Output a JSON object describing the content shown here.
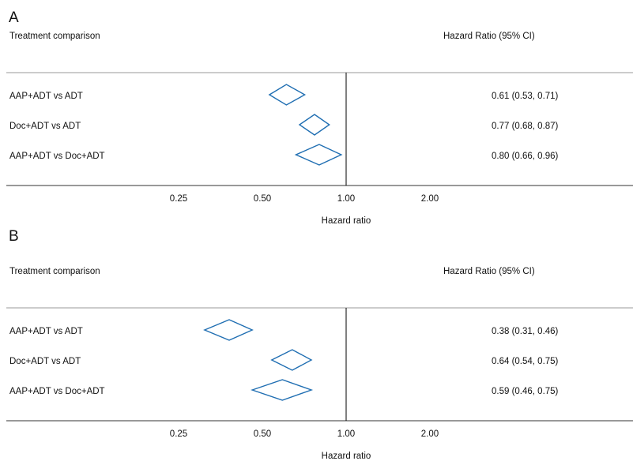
{
  "chart_data": [
    {
      "type": "forest",
      "panel_label": "A",
      "column_headers": {
        "left": "Treatment comparison",
        "right": "Hazard Ratio (95% CI)"
      },
      "rows": [
        {
          "label": "AAP+ADT vs ADT",
          "hr": 0.61,
          "lower": 0.53,
          "upper": 0.71,
          "ci_text": "0.61 (0.53, 0.71)"
        },
        {
          "label": "Doc+ADT vs ADT",
          "hr": 0.77,
          "lower": 0.68,
          "upper": 0.87,
          "ci_text": "0.77 (0.68, 0.87)"
        },
        {
          "label": "AAP+ADT vs Doc+ADT",
          "hr": 0.8,
          "lower": 0.66,
          "upper": 0.96,
          "ci_text": "0.80 (0.66, 0.96)"
        }
      ],
      "x_scale": "log",
      "x_ticks": [
        0.25,
        0.5,
        1.0,
        2.0
      ],
      "x_tick_labels": [
        "0.25",
        "0.50",
        "1.00",
        "2.00"
      ],
      "reference_line": 1.0,
      "xlabel": "Hazard ratio"
    },
    {
      "type": "forest",
      "panel_label": "B",
      "column_headers": {
        "left": "Treatment comparison",
        "right": "Hazard Ratio (95% CI)"
      },
      "rows": [
        {
          "label": "AAP+ADT vs ADT",
          "hr": 0.38,
          "lower": 0.31,
          "upper": 0.46,
          "ci_text": "0.38 (0.31, 0.46)"
        },
        {
          "label": "Doc+ADT vs ADT",
          "hr": 0.64,
          "lower": 0.54,
          "upper": 0.75,
          "ci_text": "0.64 (0.54, 0.75)"
        },
        {
          "label": "AAP+ADT vs Doc+ADT",
          "hr": 0.59,
          "lower": 0.46,
          "upper": 0.75,
          "ci_text": "0.59 (0.46, 0.75)"
        }
      ],
      "x_scale": "log",
      "x_ticks": [
        0.25,
        0.5,
        1.0,
        2.0
      ],
      "x_tick_labels": [
        "0.25",
        "0.50",
        "1.00",
        "2.00"
      ],
      "reference_line": 1.0,
      "xlabel": "Hazard ratio"
    }
  ],
  "colors": {
    "diamond": "#1f6eb2",
    "text": "#111111",
    "rule": "#9a9a9a"
  }
}
